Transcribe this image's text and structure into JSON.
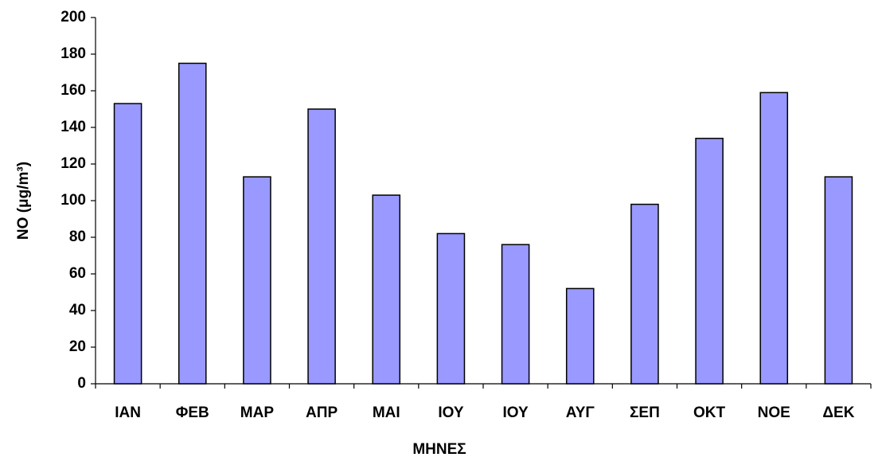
{
  "chart_data": {
    "type": "bar",
    "xlabel": "ΜΗΝΕΣ",
    "ylabel": "NO (μg/m³)",
    "categories": [
      "ΙΑΝ",
      "ΦΕΒ",
      "ΜΑΡ",
      "ΑΠΡ",
      "ΜΑΙ",
      "ΙΟΥ",
      "ΙΟΥ",
      "ΑΥΓ",
      "ΣΕΠ",
      "ΟΚΤ",
      "ΝΟΕ",
      "ΔΕΚ"
    ],
    "values": [
      153,
      175,
      113,
      150,
      103,
      82,
      76,
      52,
      98,
      134,
      159,
      113
    ],
    "color": "#9999ff",
    "ylim": [
      0,
      200
    ],
    "yticks": [
      0,
      20,
      40,
      60,
      80,
      100,
      120,
      140,
      160,
      180,
      200
    ],
    "grid": false
  }
}
